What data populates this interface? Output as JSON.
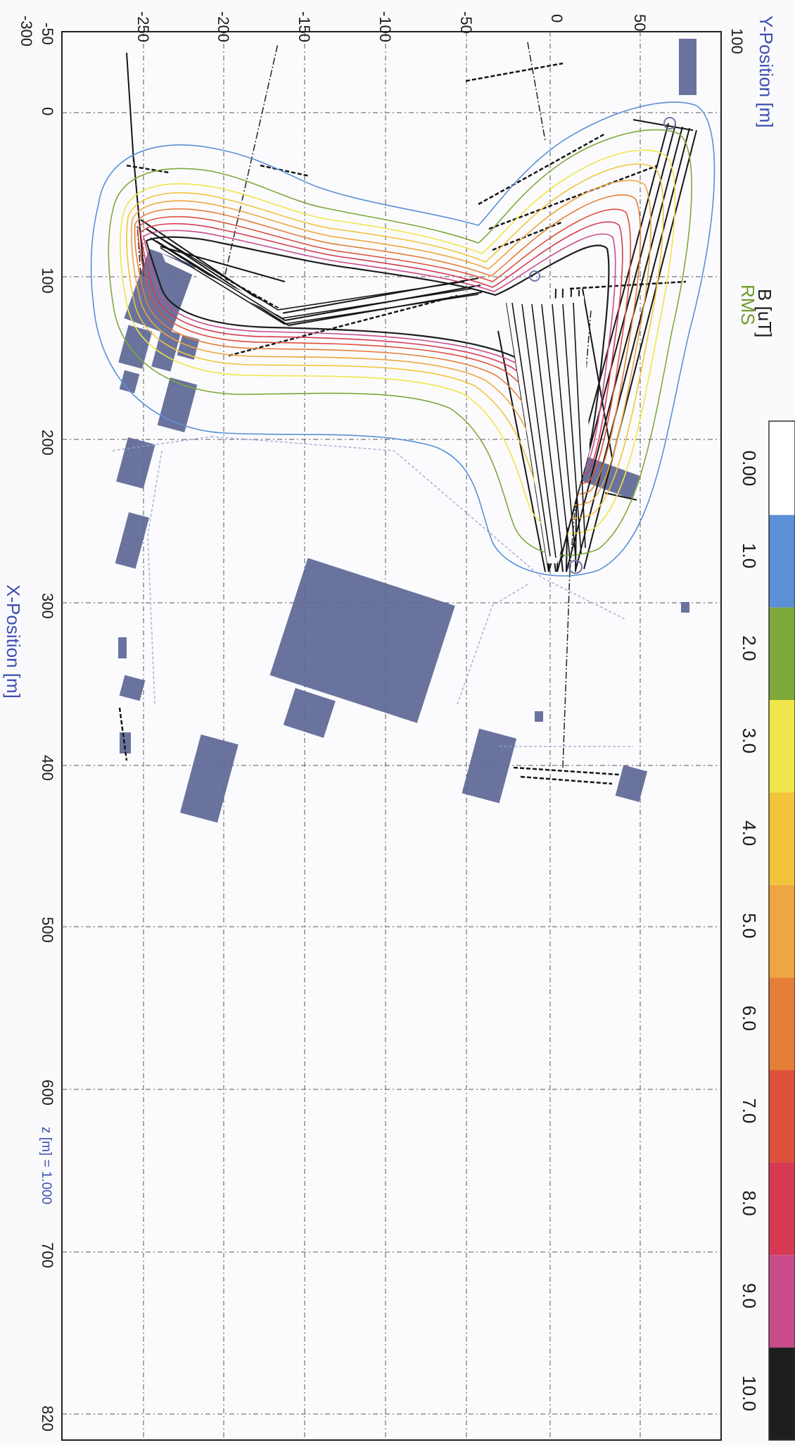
{
  "header": {
    "y_axis_title": "Y-Position [m]",
    "x_axis_title": "X-Position [m]",
    "quantity_label": "B [uT]",
    "quantity_mode": "RMS",
    "height_note": "z [m] = 1.000"
  },
  "axes": {
    "x_ticks": [
      "-50",
      "0",
      "100",
      "200",
      "300",
      "400",
      "500",
      "600",
      "700",
      "820"
    ],
    "y_ticks": [
      "-300",
      "-250",
      "-200",
      "-150",
      "-100",
      "-50",
      "0",
      "50",
      "100"
    ],
    "x_range": [
      -50,
      820
    ],
    "y_range": [
      -300,
      100
    ]
  },
  "legend": {
    "levels": [
      {
        "label": "0.00",
        "color": "#ffffff"
      },
      {
        "label": "1.0",
        "color": "#5b8fd6"
      },
      {
        "label": "2.0",
        "color": "#7ea83a"
      },
      {
        "label": "3.0",
        "color": "#f0e64a"
      },
      {
        "label": "4.0",
        "color": "#f2c43c"
      },
      {
        "label": "5.0",
        "color": "#eea640"
      },
      {
        "label": "6.0",
        "color": "#e57f37"
      },
      {
        "label": "7.0",
        "color": "#dd503a"
      },
      {
        "label": "8.0",
        "color": "#d63a52"
      },
      {
        "label": "9.0",
        "color": "#c94c88"
      },
      {
        "label": "10.0",
        "color": "#1e1e1e"
      }
    ]
  },
  "colors": {
    "axis_title": "#3d4fb0",
    "rms": "#6f9b2c",
    "grid": "#555555",
    "building": "#5d6795",
    "line": "#151515"
  }
}
